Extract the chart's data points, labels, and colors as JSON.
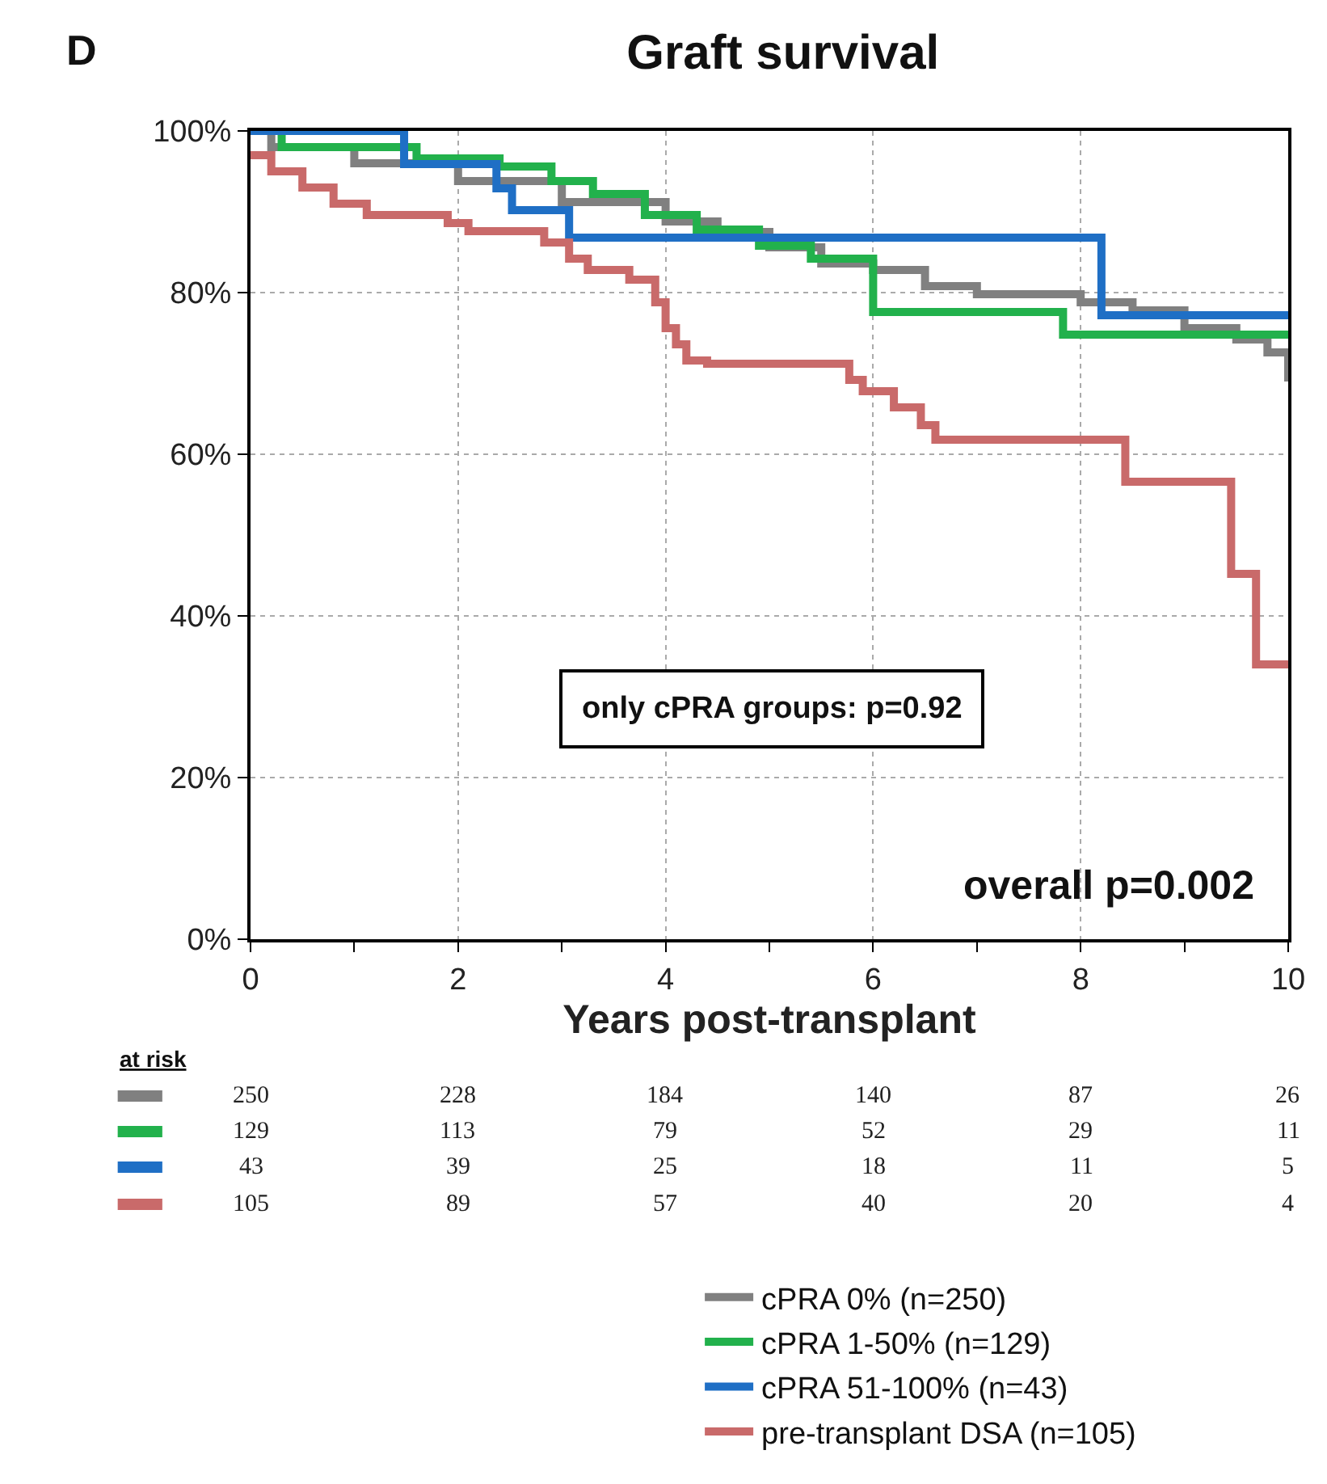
{
  "chart_data": {
    "type": "step",
    "title": "Graft survival",
    "xlabel": "Years post-transplant",
    "xlim": [
      0,
      10
    ],
    "ylim": [
      0,
      100
    ],
    "xticks": [
      0,
      {
        "value": 1,
        "label": null
      },
      2,
      {
        "value": 3,
        "label": null
      },
      4,
      {
        "value": 5,
        "label": null
      },
      6,
      {
        "value": 7,
        "label": null
      },
      8,
      {
        "value": 9,
        "label": null
      },
      10
    ],
    "yticks": [
      {
        "value": 0,
        "label": "0%"
      },
      {
        "value": 20,
        "label": "20%"
      },
      {
        "value": 40,
        "label": "40%"
      },
      {
        "value": 60,
        "label": "60%"
      },
      {
        "value": 80,
        "label": "80%"
      },
      {
        "value": 100,
        "label": "100%"
      }
    ],
    "grid": true,
    "legend": "bottom",
    "line_style": "solid",
    "marker": "none",
    "series": [
      {
        "name": "cPRA 0% (n=250)",
        "color": "#808080",
        "x": [
          0,
          0.2,
          1,
          2,
          3,
          4,
          4.5,
          5,
          5.5,
          6,
          6.5,
          7,
          7.5,
          8,
          8.5,
          9,
          9.5,
          9.8,
          10
        ],
        "values": [
          100,
          98,
          96,
          93.8,
          91.2,
          88.8,
          87.5,
          85.6,
          83.6,
          82.8,
          80.8,
          79.8,
          79.8,
          78.8,
          77.8,
          75.6,
          74.2,
          72.6,
          69
        ]
      },
      {
        "name": "cPRA 1-50% (n=129)",
        "color": "#22b14c",
        "x": [
          0,
          0.3,
          1.6,
          2.4,
          2.9,
          3.3,
          3.8,
          4.3,
          4.9,
          5.4,
          6.0,
          7.83,
          10
        ],
        "values": [
          100,
          98,
          96.6,
          95.6,
          93.8,
          92.2,
          89.6,
          87.8,
          85.8,
          84.2,
          77.6,
          74.8,
          74.8
        ]
      },
      {
        "name": "cPRA 51-100% (n=43)",
        "color": "#1f6fc5",
        "x": [
          0,
          1.48,
          2.37,
          2.52,
          3.07,
          8.2,
          10
        ],
        "values": [
          100,
          95.9,
          92.9,
          90.2,
          86.8,
          77.2,
          77.2
        ]
      },
      {
        "name": "pre-transplant DSA (n=105)",
        "color": "#c96a6a",
        "x": [
          0,
          0.2,
          0.5,
          0.8,
          1.12,
          1.9,
          2.1,
          2.83,
          3.07,
          3.25,
          3.65,
          3.9,
          4.0,
          4.1,
          4.2,
          4.4,
          5.77,
          5.9,
          6.2,
          6.46,
          6.6,
          8.43,
          9.45,
          9.69,
          10
        ],
        "values": [
          97,
          95,
          93,
          91,
          89.6,
          88.6,
          87.6,
          86.2,
          84.2,
          82.8,
          81.6,
          78.8,
          75.6,
          73.6,
          71.6,
          71.2,
          69.2,
          67.8,
          65.8,
          63.6,
          61.8,
          56.6,
          45.2,
          34,
          34
        ]
      }
    ],
    "annotations": [
      "D",
      "only cPRA groups: p=0.92",
      "overall p=0.002",
      "at risk",
      "250",
      "228",
      "184",
      "140",
      "87",
      "26",
      "129",
      "113",
      "79",
      "52",
      "29",
      "11",
      "43",
      "39",
      "25",
      "18",
      "11",
      "5",
      "105",
      "89",
      "57",
      "40",
      "20",
      "4"
    ]
  }
}
